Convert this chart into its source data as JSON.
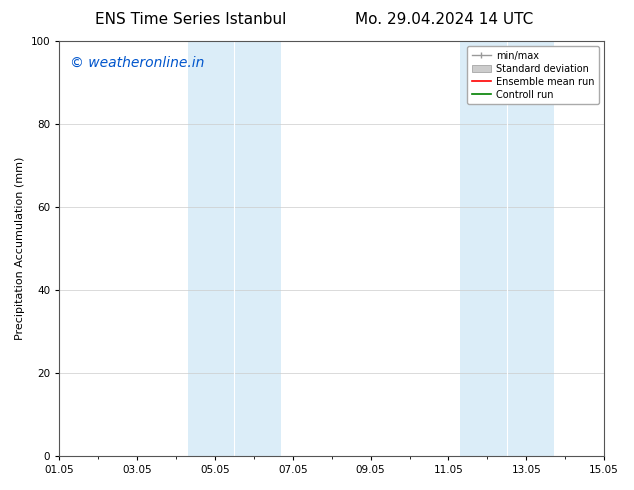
{
  "title_left": "ENS Time Series Istanbul",
  "title_right": "Mo. 29.04.2024 14 UTC",
  "ylabel": "Precipitation Accumulation (mm)",
  "ylim": [
    0,
    100
  ],
  "yticks": [
    0,
    20,
    40,
    60,
    80,
    100
  ],
  "xtick_labels": [
    "01.05",
    "03.05",
    "05.05",
    "07.05",
    "09.05",
    "11.05",
    "13.05",
    "15.05"
  ],
  "xtick_positions": [
    0,
    2,
    4,
    6,
    8,
    10,
    12,
    14
  ],
  "xlim": [
    0,
    14
  ],
  "shaded_regions": [
    {
      "x_start": 3.5,
      "x_end": 4.5,
      "color": "#daeaf5"
    },
    {
      "x_start": 4.5,
      "x_end": 5.5,
      "color": "#daeaf5"
    },
    {
      "x_start": 10.5,
      "x_end": 11.5,
      "color": "#daeaf5"
    },
    {
      "x_start": 11.5,
      "x_end": 12.5,
      "color": "#daeaf5"
    }
  ],
  "watermark_text": "© weatheronline.in",
  "watermark_color": "#0055cc",
  "watermark_fontsize": 10,
  "legend_items": [
    {
      "label": "min/max",
      "color": "#aaaaaa",
      "type": "errbar"
    },
    {
      "label": "Standard deviation",
      "color": "#cccccc",
      "type": "fill"
    },
    {
      "label": "Ensemble mean run",
      "color": "red",
      "type": "line"
    },
    {
      "label": "Controll run",
      "color": "green",
      "type": "line"
    }
  ],
  "bg_color": "#ffffff",
  "plot_bg_color": "#ffffff",
  "title_fontsize": 11,
  "axis_fontsize": 8,
  "tick_fontsize": 7.5,
  "legend_fontsize": 7,
  "ylabel_fontsize": 8
}
